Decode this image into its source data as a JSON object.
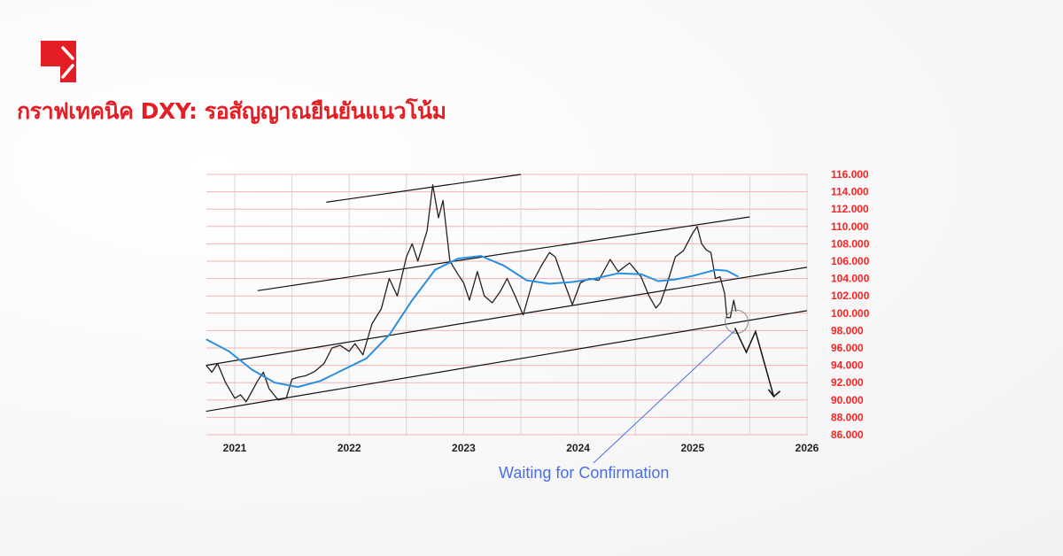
{
  "header": {
    "title": "กราฟเทคนิค DXY: รอสัญญาณยืนยันแนวโน้ม",
    "brand_color": "#e31e24"
  },
  "chart_data": {
    "type": "line",
    "title": "กราฟเทคนิค DXY: รอสัญญาณยืนยันแนวโน้ม",
    "xlabel": "",
    "ylabel": "",
    "xlim": [
      2020.75,
      2026.05
    ],
    "ylim": [
      86,
      116
    ],
    "x_ticks": [
      "2021",
      "2022",
      "2023",
      "2024",
      "2025",
      "2026"
    ],
    "y_ticks": [
      "86.000",
      "88.000",
      "90.000",
      "92.000",
      "94.000",
      "96.000",
      "98.000",
      "100.000",
      "102.000",
      "104.000",
      "106.000",
      "108.000",
      "110.000",
      "112.000",
      "114.000",
      "116.000"
    ],
    "y_tick_color": "#ff2020",
    "grid": true,
    "series": [
      {
        "role": "price",
        "color": "#222222",
        "points": [
          [
            2020.75,
            94.0
          ],
          [
            2020.8,
            93.2
          ],
          [
            2020.85,
            94.2
          ],
          [
            2020.92,
            92.0
          ],
          [
            2021.0,
            90.2
          ],
          [
            2021.05,
            90.6
          ],
          [
            2021.1,
            89.8
          ],
          [
            2021.15,
            91.0
          ],
          [
            2021.2,
            92.2
          ],
          [
            2021.25,
            93.2
          ],
          [
            2021.3,
            91.3
          ],
          [
            2021.38,
            90.0
          ],
          [
            2021.45,
            90.2
          ],
          [
            2021.5,
            92.4
          ],
          [
            2021.55,
            92.6
          ],
          [
            2021.62,
            92.8
          ],
          [
            2021.7,
            93.3
          ],
          [
            2021.78,
            94.2
          ],
          [
            2021.85,
            96.0
          ],
          [
            2021.92,
            96.3
          ],
          [
            2022.0,
            95.6
          ],
          [
            2022.05,
            96.5
          ],
          [
            2022.12,
            95.2
          ],
          [
            2022.2,
            98.8
          ],
          [
            2022.28,
            100.5
          ],
          [
            2022.35,
            104.0
          ],
          [
            2022.42,
            102.0
          ],
          [
            2022.5,
            106.5
          ],
          [
            2022.55,
            108.0
          ],
          [
            2022.6,
            106.0
          ],
          [
            2022.68,
            109.5
          ],
          [
            2022.73,
            114.8
          ],
          [
            2022.78,
            111.0
          ],
          [
            2022.82,
            113.0
          ],
          [
            2022.88,
            106.0
          ],
          [
            2022.95,
            104.5
          ],
          [
            2023.0,
            103.5
          ],
          [
            2023.05,
            101.5
          ],
          [
            2023.12,
            104.8
          ],
          [
            2023.18,
            102.0
          ],
          [
            2023.25,
            101.2
          ],
          [
            2023.32,
            102.5
          ],
          [
            2023.38,
            104.0
          ],
          [
            2023.45,
            102.0
          ],
          [
            2023.52,
            99.8
          ],
          [
            2023.6,
            103.5
          ],
          [
            2023.68,
            105.5
          ],
          [
            2023.75,
            107.0
          ],
          [
            2023.8,
            106.5
          ],
          [
            2023.88,
            103.5
          ],
          [
            2023.95,
            101.0
          ],
          [
            2024.02,
            103.5
          ],
          [
            2024.1,
            104.0
          ],
          [
            2024.18,
            103.8
          ],
          [
            2024.28,
            106.2
          ],
          [
            2024.35,
            104.8
          ],
          [
            2024.45,
            105.8
          ],
          [
            2024.55,
            104.2
          ],
          [
            2024.62,
            102.0
          ],
          [
            2024.68,
            100.6
          ],
          [
            2024.72,
            101.2
          ],
          [
            2024.78,
            103.5
          ],
          [
            2024.85,
            106.5
          ],
          [
            2024.92,
            107.2
          ],
          [
            2025.0,
            109.2
          ],
          [
            2025.04,
            110.0
          ],
          [
            2025.08,
            108.0
          ],
          [
            2025.12,
            107.3
          ],
          [
            2025.16,
            107.0
          ],
          [
            2025.2,
            104.0
          ],
          [
            2025.24,
            104.2
          ],
          [
            2025.28,
            102.3
          ],
          [
            2025.3,
            99.5
          ],
          [
            2025.33,
            99.5
          ],
          [
            2025.36,
            101.5
          ],
          [
            2025.38,
            100.2
          ]
        ]
      },
      {
        "role": "moving-average",
        "color": "#2a8fe0",
        "points": [
          [
            2020.75,
            97.0
          ],
          [
            2020.95,
            95.6
          ],
          [
            2021.15,
            93.5
          ],
          [
            2021.35,
            92.0
          ],
          [
            2021.55,
            91.5
          ],
          [
            2021.75,
            92.2
          ],
          [
            2021.95,
            93.5
          ],
          [
            2022.15,
            94.8
          ],
          [
            2022.35,
            97.5
          ],
          [
            2022.55,
            101.5
          ],
          [
            2022.75,
            105.0
          ],
          [
            2022.95,
            106.3
          ],
          [
            2023.15,
            106.6
          ],
          [
            2023.35,
            105.5
          ],
          [
            2023.55,
            103.8
          ],
          [
            2023.75,
            103.4
          ],
          [
            2023.95,
            103.6
          ],
          [
            2024.15,
            104.0
          ],
          [
            2024.35,
            104.6
          ],
          [
            2024.55,
            104.5
          ],
          [
            2024.7,
            103.7
          ],
          [
            2024.85,
            103.9
          ],
          [
            2025.0,
            104.3
          ],
          [
            2025.2,
            105.0
          ],
          [
            2025.3,
            104.9
          ],
          [
            2025.4,
            104.2
          ]
        ]
      }
    ],
    "trendlines": [
      {
        "from": [
          2020.75,
          88.7
        ],
        "to": [
          2026.0,
          100.3
        ]
      },
      {
        "from": [
          2020.75,
          94.0
        ],
        "to": [
          2026.0,
          105.3
        ]
      },
      {
        "from": [
          2021.2,
          102.6
        ],
        "to": [
          2025.5,
          111.1
        ]
      },
      {
        "from": [
          2021.8,
          112.8
        ],
        "to": [
          2023.5,
          116.0
        ]
      }
    ],
    "projection": {
      "color": "#111111",
      "points": [
        [
          2025.37,
          98.3
        ],
        [
          2025.47,
          95.5
        ],
        [
          2025.55,
          97.9
        ],
        [
          2025.71,
          90.4
        ]
      ]
    },
    "annotation": {
      "text": "Waiting for Confirmation",
      "color": "#4a6ee0",
      "target": [
        2025.37,
        98.0
      ]
    }
  }
}
